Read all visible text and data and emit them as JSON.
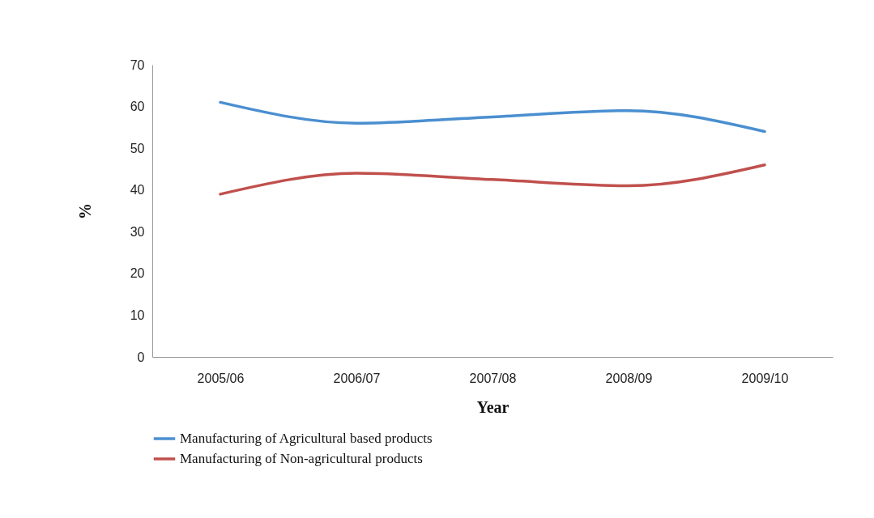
{
  "chart_data": {
    "type": "line",
    "xlabel": "Year",
    "ylabel": "%",
    "categories": [
      "2005/06",
      "2006/07",
      "2007/08",
      "2008/09",
      "2009/10"
    ],
    "series": [
      {
        "name": "Manufacturing of Agricultural based products",
        "color": "#4a8fd0",
        "values": [
          61,
          56,
          57.5,
          59,
          54
        ]
      },
      {
        "name": "Manufacturing of Non-agricultural products",
        "color": "#c0504d",
        "values": [
          39,
          44,
          42.5,
          41,
          46
        ]
      }
    ],
    "ylim": [
      0,
      70
    ],
    "yticks": [
      0,
      10,
      20,
      30,
      40,
      50,
      60,
      70
    ],
    "grid": false,
    "legend": "bottom",
    "marker": "none",
    "line_style": "solid"
  }
}
